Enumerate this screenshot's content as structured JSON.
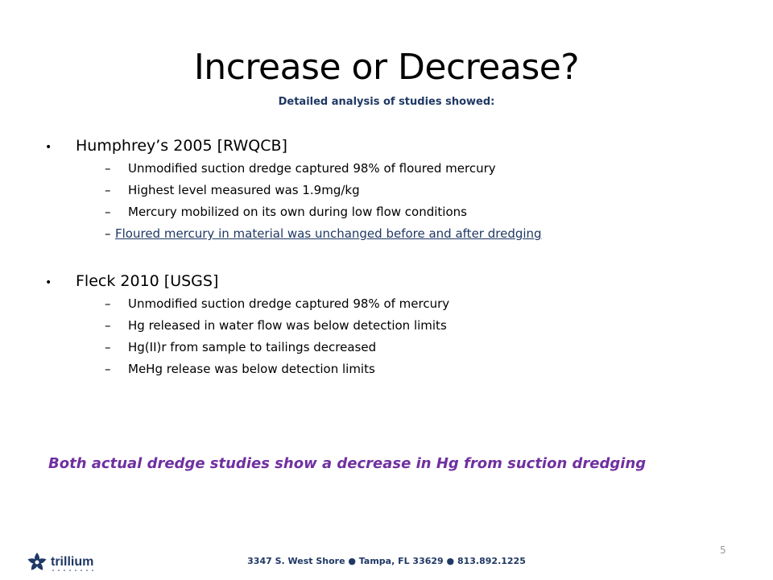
{
  "title": "Increase or Decrease?",
  "subtitle": "Detailed analysis of studies showed:",
  "studies": [
    {
      "heading": "Humphrey’s 2005  [RWQCB]",
      "findings": [
        "Unmodified suction dredge captured 98% of floured mercury",
        "Highest level measured was 1.9mg/kg",
        "Mercury mobilized on its own during low flow conditions",
        "Floured mercury in material was unchanged before and after dredging"
      ]
    },
    {
      "heading": "Fleck 2010 [USGS]",
      "findings": [
        "Unmodified suction dredge captured 98% of mercury",
        "Hg released in water flow was below detection limits",
        "Hg(II)r from sample to tailings decreased",
        "MeHg release was below detection limits"
      ]
    }
  ],
  "bullet_glyph": "•",
  "dash_glyph": "–",
  "conclusion": "Both actual dredge studies show a decrease in Hg from suction dredging",
  "footer": {
    "address": "3347 S. West Shore ● Tampa, FL  33629  ● 813.892.1225",
    "page_number": "5",
    "logo_text": "trillium",
    "logo_icon": "trillium-flower-logo"
  },
  "colors": {
    "title": "#000000",
    "subtitle": "#1f3864",
    "conclusion": "#7030a0",
    "link": "#1f3864",
    "logo": "#1f3864"
  }
}
